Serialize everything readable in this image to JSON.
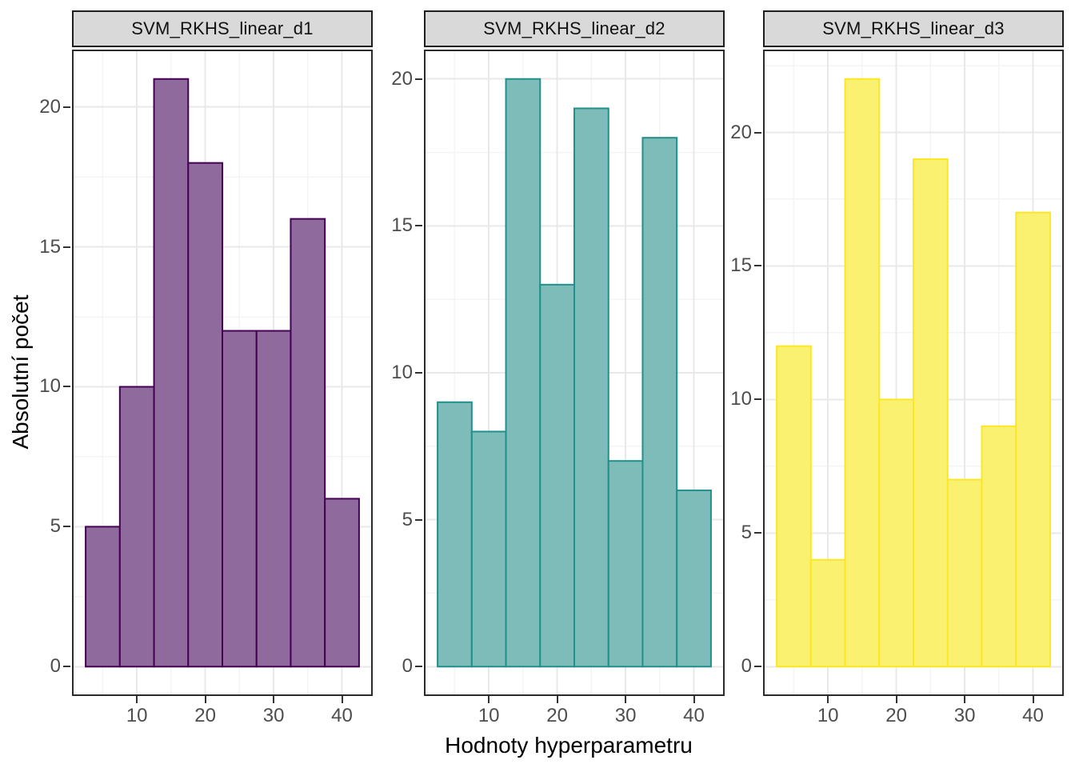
{
  "chart_data": {
    "type": "bar",
    "subtype": "faceted-histogram",
    "xlabel": "Hodnoty hyperparametru",
    "ylabel": "Absolutní počet",
    "x_ticks": [
      10,
      20,
      30,
      40
    ],
    "x_minor": [
      5,
      15,
      25,
      35
    ],
    "bin_start": 2.5,
    "bin_width": 5,
    "x_range": [
      0.5,
      44.5
    ],
    "grid": true,
    "panels": [
      {
        "title": "SVM_RKHS_linear_d1",
        "fill": "#8f6b9d",
        "stroke": "#440154",
        "y_ticks": [
          0,
          5,
          10,
          15,
          20
        ],
        "y_max": 21,
        "bin_lefts": [
          2.5,
          7.5,
          12.5,
          17.5,
          22.5,
          27.5,
          32.5,
          37.5
        ],
        "counts": [
          5,
          10,
          21,
          18,
          12,
          12,
          16,
          6
        ]
      },
      {
        "title": "SVM_RKHS_linear_d2",
        "fill": "#7dbcb8",
        "stroke": "#21908c",
        "y_ticks": [
          0,
          5,
          10,
          15,
          20
        ],
        "y_max": 20,
        "bin_lefts": [
          2.5,
          7.5,
          12.5,
          17.5,
          22.5,
          27.5,
          32.5,
          37.5
        ],
        "counts": [
          9,
          8,
          20,
          13,
          19,
          7,
          18,
          6
        ]
      },
      {
        "title": "SVM_RKHS_linear_d3",
        "fill": "#fbf170",
        "stroke": "#fde725",
        "y_ticks": [
          0,
          5,
          10,
          15,
          20
        ],
        "y_max": 22,
        "bin_lefts": [
          2.5,
          7.5,
          12.5,
          17.5,
          22.5,
          27.5,
          32.5,
          37.5
        ],
        "counts": [
          12,
          4,
          22,
          10,
          19,
          7,
          9,
          17
        ]
      }
    ],
    "colors": {
      "strip_bg": "#d9d9d9",
      "panel_border": "#2b2b2b",
      "grid_major": "#e8e8e8",
      "grid_minor": "#f4f4f4",
      "tick_mark": "#333333",
      "tick_label": "#4d4d4d",
      "text": "#000000"
    }
  }
}
